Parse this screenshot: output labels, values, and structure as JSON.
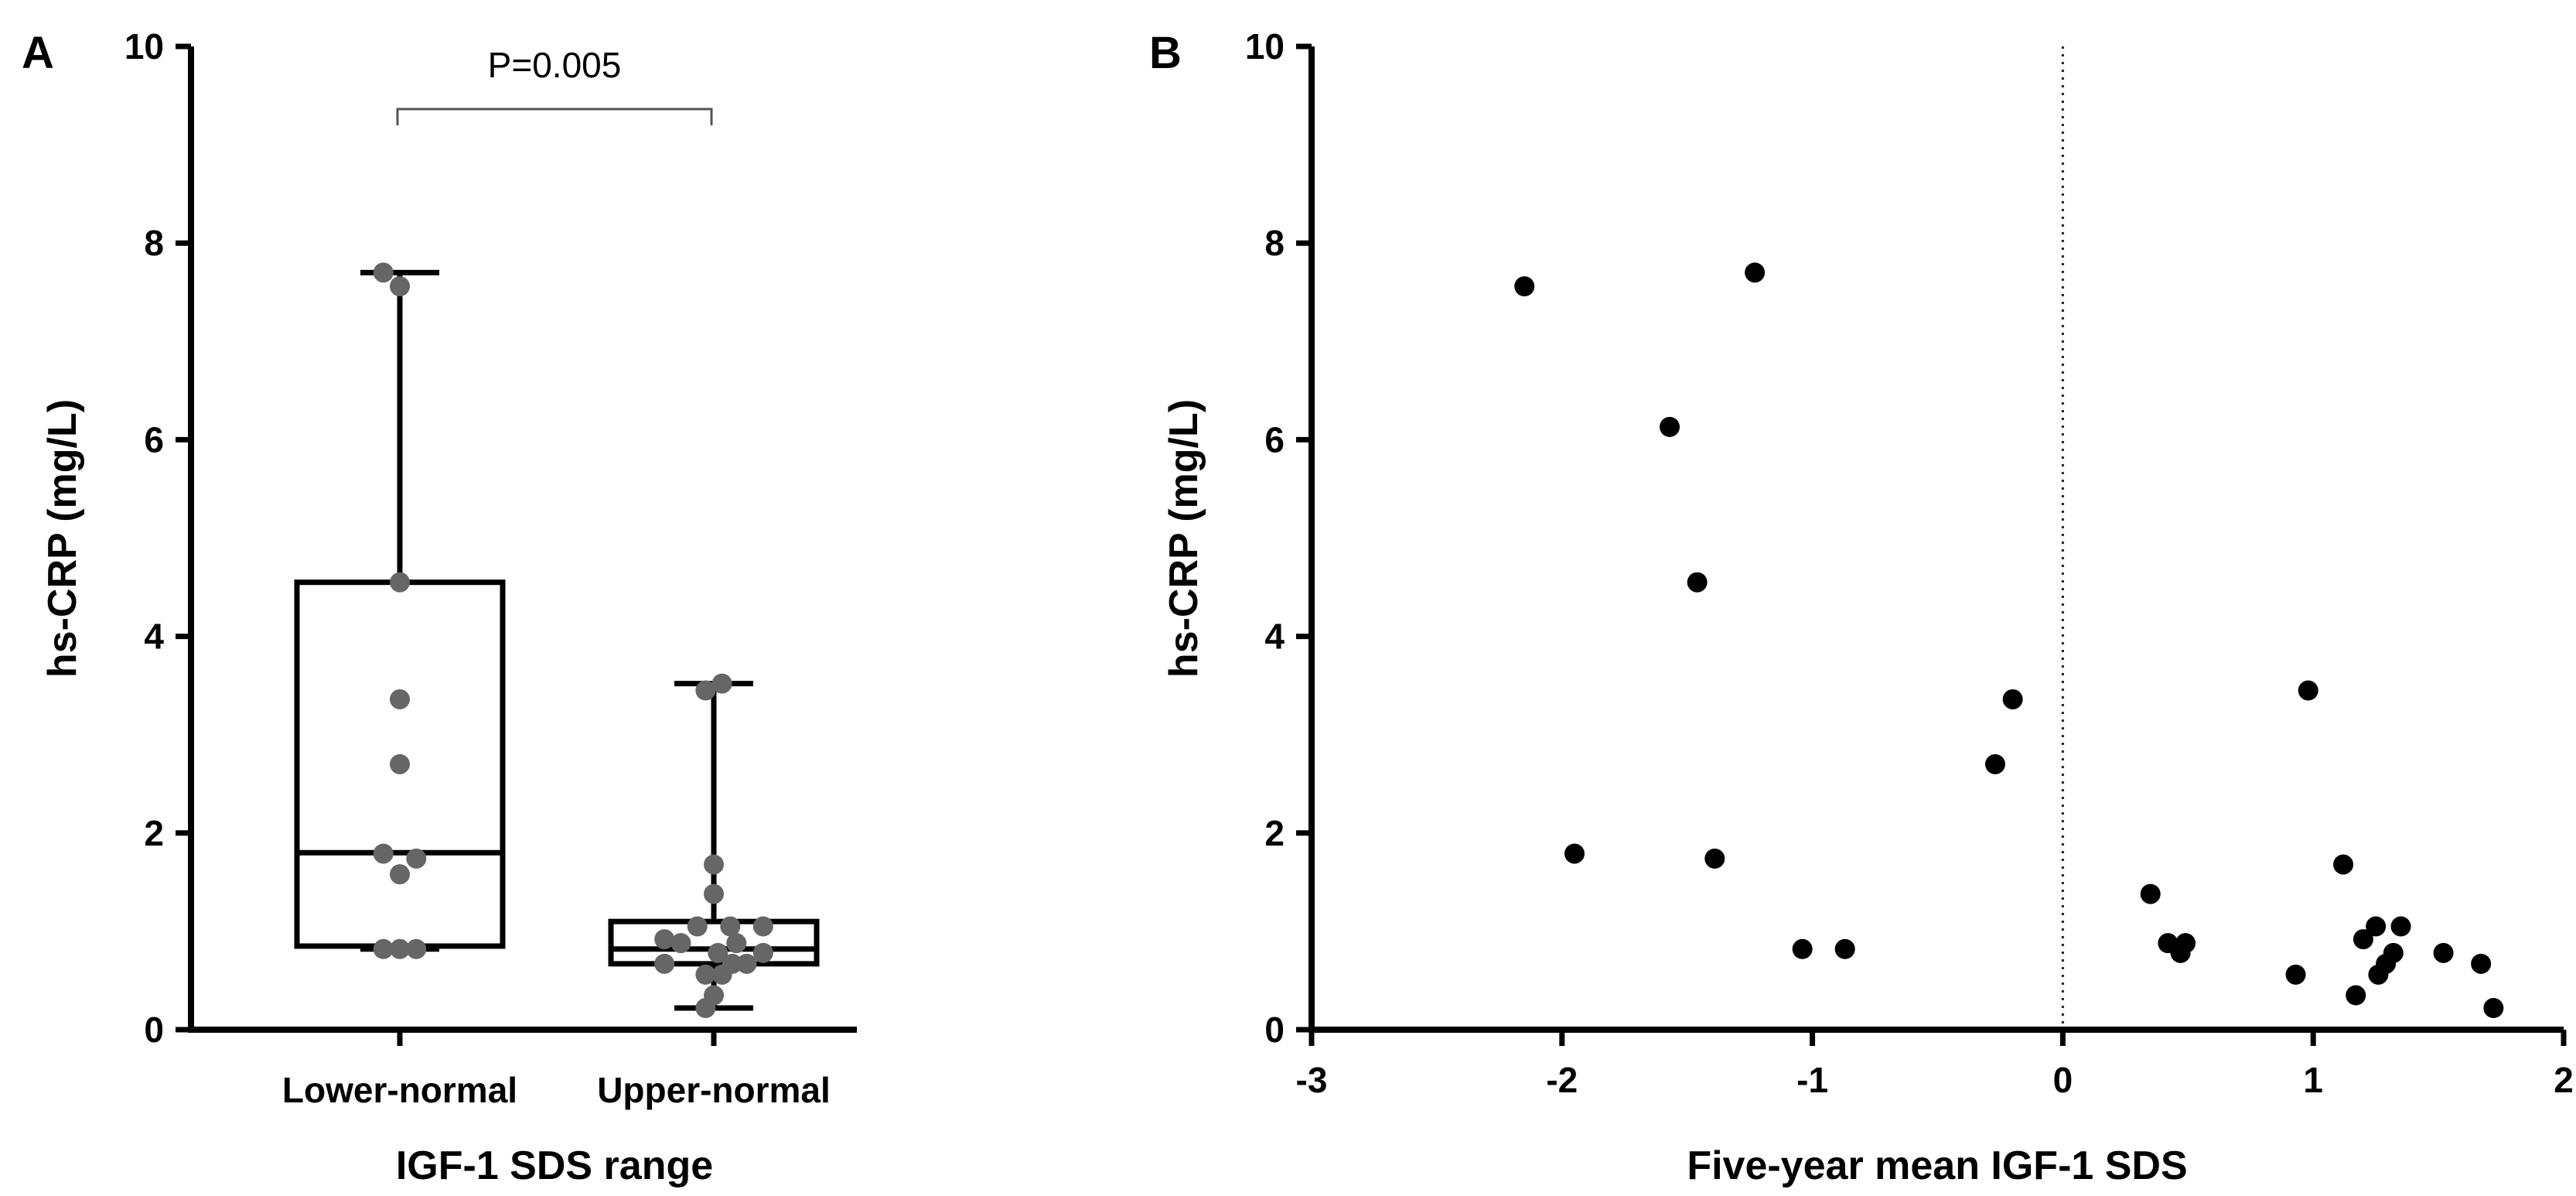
{
  "chart_data": [
    {
      "type": "box",
      "panel": "A",
      "title": "",
      "xlabel": "IGF-1 SDS range",
      "ylabel": "hs-CRP (mg/L)",
      "ylim": [
        0,
        10
      ],
      "yticks": [
        0,
        2,
        4,
        6,
        8,
        10
      ],
      "categories": [
        "Lower-normal",
        "Upper-normal"
      ],
      "annotation": "P=0.005",
      "series": [
        {
          "name": "Lower-normal",
          "box": {
            "min": 0.82,
            "q1": 0.85,
            "median": 1.8,
            "q3": 4.55,
            "max": 7.7
          },
          "points": [
            {
              "y": 7.7,
              "dx": -0.16
            },
            {
              "y": 7.56,
              "dx": 0.0
            },
            {
              "y": 4.55,
              "dx": 0.0
            },
            {
              "y": 3.36,
              "dx": 0.0
            },
            {
              "y": 2.7,
              "dx": 0.0
            },
            {
              "y": 1.79,
              "dx": -0.16
            },
            {
              "y": 1.74,
              "dx": 0.16
            },
            {
              "y": 1.58,
              "dx": 0.0
            },
            {
              "y": 0.82,
              "dx": -0.16
            },
            {
              "y": 0.82,
              "dx": 0.0
            },
            {
              "y": 0.82,
              "dx": 0.16
            }
          ]
        },
        {
          "name": "Upper-normal",
          "box": {
            "min": 0.22,
            "q1": 0.67,
            "median": 0.82,
            "q3": 1.1,
            "max": 3.52
          },
          "points": [
            {
              "y": 3.45,
              "dx": -0.08
            },
            {
              "y": 3.52,
              "dx": 0.08
            },
            {
              "y": 1.68,
              "dx": 0.0
            },
            {
              "y": 1.38,
              "dx": 0.0
            },
            {
              "y": 1.05,
              "dx": 0.16
            },
            {
              "y": 1.05,
              "dx": -0.16
            },
            {
              "y": 1.05,
              "dx": 0.48
            },
            {
              "y": 0.92,
              "dx": -0.48
            },
            {
              "y": 0.88,
              "dx": -0.32
            },
            {
              "y": 0.88,
              "dx": 0.22
            },
            {
              "y": 0.78,
              "dx": 0.48
            },
            {
              "y": 0.78,
              "dx": 0.04
            },
            {
              "y": 0.67,
              "dx": -0.48
            },
            {
              "y": 0.67,
              "dx": 0.18
            },
            {
              "y": 0.67,
              "dx": 0.32
            },
            {
              "y": 0.56,
              "dx": -0.08
            },
            {
              "y": 0.56,
              "dx": 0.08
            },
            {
              "y": 0.35,
              "dx": 0.0
            },
            {
              "y": 0.22,
              "dx": -0.08
            }
          ]
        }
      ]
    },
    {
      "type": "scatter",
      "panel": "B",
      "title": "",
      "xlabel": "Five-year mean IGF-1 SDS",
      "ylabel": "hs-CRP (mg/L)",
      "xlim": [
        -3,
        2
      ],
      "ylim": [
        0,
        10
      ],
      "xticks": [
        -3,
        -2,
        -1,
        0,
        1,
        2
      ],
      "yticks": [
        0,
        2,
        4,
        6,
        8,
        10
      ],
      "reference_line_x": 0,
      "points": [
        {
          "x": -2.15,
          "y": 7.56
        },
        {
          "x": -1.23,
          "y": 7.7
        },
        {
          "x": -1.57,
          "y": 6.13
        },
        {
          "x": -1.46,
          "y": 4.55
        },
        {
          "x": -0.2,
          "y": 3.36
        },
        {
          "x": -0.27,
          "y": 2.7
        },
        {
          "x": -1.95,
          "y": 1.79
        },
        {
          "x": -1.39,
          "y": 1.74
        },
        {
          "x": -1.04,
          "y": 0.82
        },
        {
          "x": -0.87,
          "y": 0.82
        },
        {
          "x": 0.98,
          "y": 3.45
        },
        {
          "x": 1.12,
          "y": 1.68
        },
        {
          "x": 0.35,
          "y": 1.38
        },
        {
          "x": 1.25,
          "y": 1.05
        },
        {
          "x": 1.35,
          "y": 1.05
        },
        {
          "x": 1.2,
          "y": 0.92
        },
        {
          "x": 0.42,
          "y": 0.88
        },
        {
          "x": 0.49,
          "y": 0.88
        },
        {
          "x": 0.47,
          "y": 0.78
        },
        {
          "x": 1.32,
          "y": 0.78
        },
        {
          "x": 1.52,
          "y": 0.78
        },
        {
          "x": 1.29,
          "y": 0.67
        },
        {
          "x": 1.67,
          "y": 0.67
        },
        {
          "x": 0.93,
          "y": 0.56
        },
        {
          "x": 1.26,
          "y": 0.56
        },
        {
          "x": 1.17,
          "y": 0.35
        },
        {
          "x": 1.72,
          "y": 0.22
        }
      ]
    }
  ]
}
